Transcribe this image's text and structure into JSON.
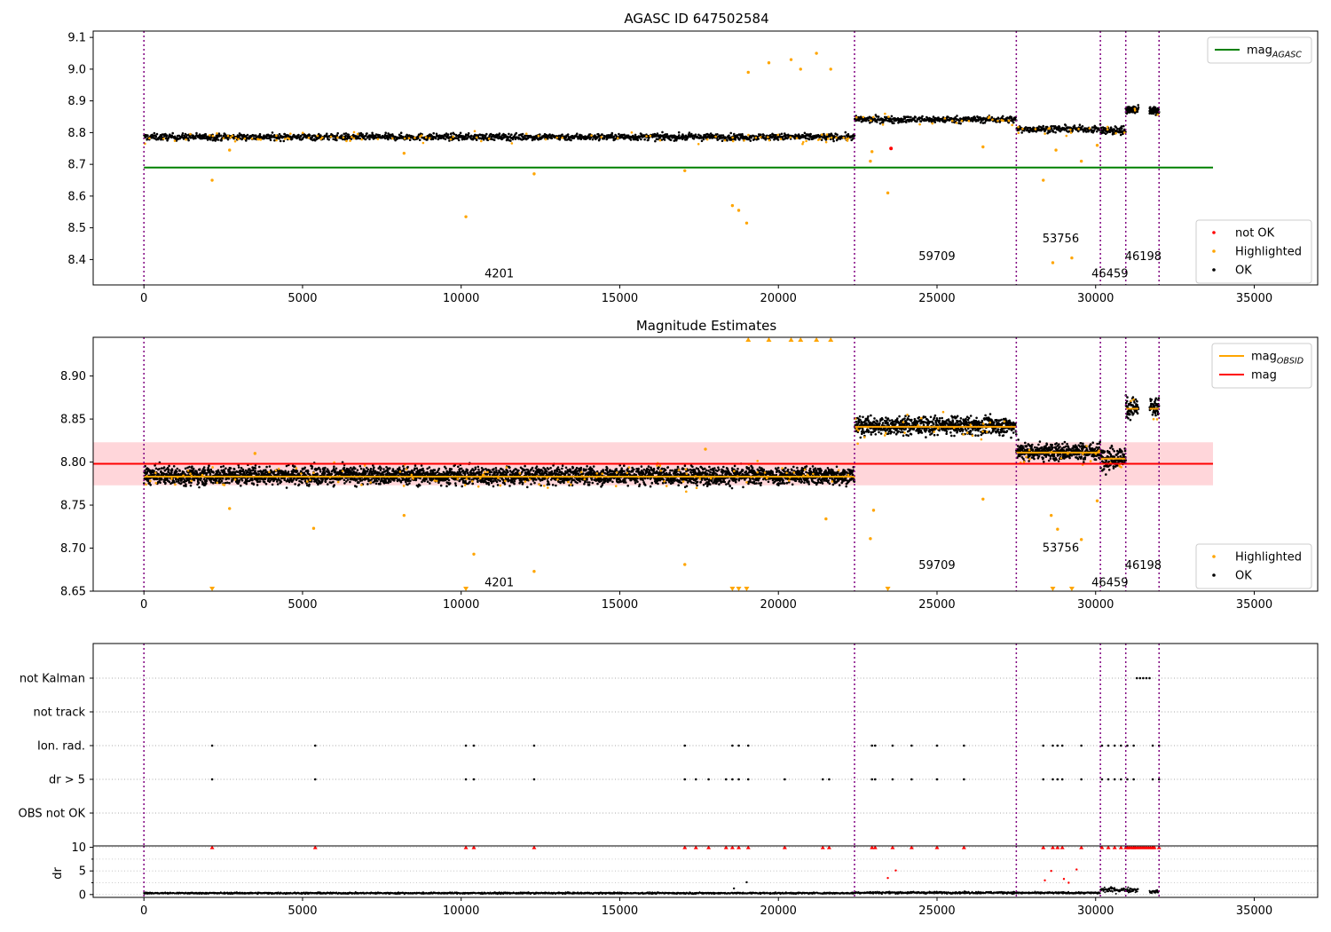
{
  "chart_data": [
    {
      "type": "scatter",
      "title": "AGASC ID 647502584",
      "xlim": [
        -1600,
        37000
      ],
      "ylim": [
        8.32,
        9.12
      ],
      "x_ticks": [
        0,
        5000,
        10000,
        15000,
        20000,
        25000,
        30000,
        35000
      ],
      "y_ticks": [
        8.4,
        8.5,
        8.6,
        8.7,
        8.8,
        8.9,
        9.0,
        9.1
      ],
      "y_tick_labels": [
        "8.4",
        "8.5",
        "8.6",
        "8.7",
        "8.8",
        "8.9",
        "9.0",
        "9.1"
      ],
      "vlines": [
        0,
        22400,
        27500,
        30150,
        30950,
        32000
      ],
      "segments": [
        {
          "x": [
            0,
            22400
          ],
          "y": 8.783,
          "spread": 0.011
        },
        {
          "x": [
            22400,
            27500
          ],
          "y": 8.838,
          "spread": 0.011
        },
        {
          "x": [
            27500,
            30150
          ],
          "y": 8.808,
          "spread": 0.011
        },
        {
          "x": [
            30150,
            30950
          ],
          "y": 8.803,
          "spread": 0.014
        },
        {
          "x": [
            30950,
            31350
          ],
          "y": 8.87,
          "spread": 0.013
        },
        {
          "x": [
            31700,
            32000
          ],
          "y": 8.865,
          "spread": 0.012
        }
      ],
      "hlines": [
        {
          "name": "mag_AGASC",
          "y": 8.69,
          "x": [
            0,
            33700
          ],
          "color": "#008000"
        }
      ],
      "highlighted_points": [
        [
          2150,
          8.65
        ],
        [
          10150,
          8.535
        ],
        [
          12300,
          8.67
        ],
        [
          17050,
          8.68
        ],
        [
          18550,
          8.57
        ],
        [
          18750,
          8.555
        ],
        [
          19000,
          8.515
        ],
        [
          19050,
          8.99
        ],
        [
          19700,
          9.02
        ],
        [
          20400,
          9.03
        ],
        [
          20700,
          9.0
        ],
        [
          21200,
          9.05
        ],
        [
          21650,
          9.0
        ],
        [
          22950,
          8.74
        ],
        [
          22900,
          8.71
        ],
        [
          23450,
          8.61
        ],
        [
          26450,
          8.755
        ],
        [
          28350,
          8.65
        ],
        [
          28650,
          8.39
        ],
        [
          28750,
          8.745
        ],
        [
          29250,
          8.405
        ],
        [
          29550,
          8.71
        ],
        [
          30050,
          8.76
        ],
        [
          8200,
          8.735
        ],
        [
          2700,
          8.745
        ]
      ],
      "not_ok_points": [
        [
          23550,
          8.75
        ]
      ],
      "annotations": [
        {
          "text": "4201",
          "x": 11200,
          "y": 8.355
        },
        {
          "text": "59709",
          "x": 25000,
          "y": 8.41
        },
        {
          "text": "53756",
          "x": 28900,
          "y": 8.465
        },
        {
          "text": "46459",
          "x": 30450,
          "y": 8.355
        },
        {
          "text": "46198",
          "x": 31500,
          "y": 8.41
        }
      ],
      "legend_top": [
        {
          "label": "mag",
          "sub": "AGASC",
          "color": "#008000",
          "kind": "line"
        }
      ],
      "legend_bottom": [
        {
          "label": "not OK",
          "color": "#ff0000",
          "kind": "dot"
        },
        {
          "label": "Highlighted",
          "color": "#ffa500",
          "kind": "dot"
        },
        {
          "label": "OK",
          "color": "#000000",
          "kind": "dot"
        }
      ],
      "legend_placement": [
        "upper right",
        "lower right"
      ]
    },
    {
      "type": "scatter",
      "title": "Magnitude Estimates",
      "xlim": [
        -1600,
        37000
      ],
      "ylim": [
        8.65,
        8.945
      ],
      "x_ticks": [
        0,
        5000,
        10000,
        15000,
        20000,
        25000,
        30000,
        35000
      ],
      "y_ticks": [
        8.65,
        8.7,
        8.75,
        8.8,
        8.85,
        8.9
      ],
      "y_tick_labels": [
        "8.65",
        "8.70",
        "8.75",
        "8.80",
        "8.85",
        "8.90"
      ],
      "vlines": [
        0,
        22400,
        27500,
        30150,
        30950,
        32000
      ],
      "segments": [
        {
          "x": [
            0,
            22400
          ],
          "y": 8.783,
          "spread": 0.011
        },
        {
          "x": [
            22400,
            27500
          ],
          "y": 8.841,
          "spread": 0.011
        },
        {
          "x": [
            27500,
            30150
          ],
          "y": 8.811,
          "spread": 0.011
        },
        {
          "x": [
            30150,
            30950
          ],
          "y": 8.804,
          "spread": 0.014
        },
        {
          "x": [
            30950,
            31350
          ],
          "y": 8.862,
          "spread": 0.013
        },
        {
          "x": [
            31700,
            32000
          ],
          "y": 8.862,
          "spread": 0.012
        }
      ],
      "band": {
        "y": [
          8.773,
          8.823
        ],
        "x": [
          -1600,
          33700
        ],
        "color": "#ffd6da"
      },
      "mag_line": {
        "y": 8.798,
        "x": [
          -1600,
          33700
        ],
        "color": "#ff0000"
      },
      "highlighted_points": [
        [
          3500,
          8.81
        ],
        [
          10400,
          8.693
        ],
        [
          12300,
          8.673
        ],
        [
          17050,
          8.681
        ],
        [
          17700,
          8.815
        ],
        [
          22900,
          8.711
        ],
        [
          23000,
          8.744
        ],
        [
          26450,
          8.757
        ],
        [
          28600,
          8.738
        ],
        [
          28800,
          8.722
        ],
        [
          29550,
          8.71
        ],
        [
          30050,
          8.755
        ],
        [
          5350,
          8.723
        ],
        [
          8200,
          8.738
        ],
        [
          2700,
          8.746
        ],
        [
          21500,
          8.734
        ]
      ],
      "clipped_points": [
        [
          2150,
          8.65
        ],
        [
          10150,
          8.65
        ],
        [
          18550,
          8.65
        ],
        [
          18750,
          8.65
        ],
        [
          19000,
          8.65
        ],
        [
          23450,
          8.65
        ],
        [
          28650,
          8.65
        ],
        [
          29250,
          8.65
        ],
        [
          19050,
          8.945
        ],
        [
          19700,
          8.945
        ],
        [
          20400,
          8.945
        ],
        [
          20700,
          8.945
        ],
        [
          21200,
          8.945
        ],
        [
          21650,
          8.945
        ]
      ],
      "annotations": [
        {
          "text": "4201",
          "x": 11200,
          "y": 8.66
        },
        {
          "text": "59709",
          "x": 25000,
          "y": 8.68
        },
        {
          "text": "53756",
          "x": 28900,
          "y": 8.7
        },
        {
          "text": "46459",
          "x": 30450,
          "y": 8.66
        },
        {
          "text": "46198",
          "x": 31500,
          "y": 8.68
        }
      ],
      "legend_top": [
        {
          "label": "mag",
          "sub": "OBSID",
          "color": "#ffa500",
          "kind": "line"
        },
        {
          "label": "mag",
          "sub": "",
          "color": "#ff0000",
          "kind": "line"
        }
      ],
      "legend_bottom": [
        {
          "label": "Highlighted",
          "color": "#ffa500",
          "kind": "dot"
        },
        {
          "label": "OK",
          "color": "#000000",
          "kind": "dot"
        }
      ],
      "legend_placement": [
        "upper right",
        "lower right"
      ]
    },
    {
      "type": "scatter",
      "xlim": [
        -1600,
        37000
      ],
      "categories": [
        "not Kalman",
        "not track",
        "Ion. rad.",
        "dr > 5",
        "OBS not OK"
      ],
      "vlines": [
        0,
        22400,
        27500,
        30150,
        30950,
        32000
      ],
      "flags": {
        "not Kalman": [
          31300,
          31400,
          31500,
          31600,
          31700
        ],
        "not track": [],
        "Ion. rad.": [
          2150,
          5400,
          10150,
          10400,
          12300,
          17050,
          18550,
          18750,
          19050,
          22950,
          23050,
          23600,
          24200,
          25000,
          25850,
          28350,
          28650,
          28800,
          28950,
          29550,
          30200,
          30400,
          30600,
          30800,
          31000,
          31200,
          31800,
          32000
        ],
        "dr > 5": [
          2150,
          5400,
          10150,
          10400,
          12300,
          17050,
          17400,
          17800,
          18350,
          18550,
          18750,
          19050,
          20200,
          21400,
          21600,
          22950,
          23050,
          23600,
          24200,
          25000,
          25850,
          28350,
          28650,
          28800,
          28950,
          29550,
          30200,
          30400,
          30600,
          30800,
          31000,
          31200,
          31800,
          32000
        ],
        "OBS not OK": []
      }
    },
    {
      "type": "scatter",
      "ylabel": "dr",
      "xlim": [
        -1600,
        37000
      ],
      "ylim": [
        -0.6,
        10.3
      ],
      "x_ticks": [
        0,
        5000,
        10000,
        15000,
        20000,
        25000,
        30000,
        35000
      ],
      "y_ticks": [
        0,
        5,
        10
      ],
      "y_tick_labels": [
        "0",
        "5",
        "10"
      ],
      "vlines": [
        0,
        22400,
        27500,
        30150,
        30950,
        32000
      ],
      "clipped_points": [
        2150,
        5400,
        10150,
        10400,
        12300,
        17050,
        17400,
        17800,
        18350,
        18550,
        18750,
        19050,
        20200,
        21400,
        21600,
        22950,
        23050,
        23600,
        24200,
        25000,
        25850,
        28350,
        28650,
        28800,
        28950,
        29550,
        30200,
        30400,
        30600,
        30800,
        31000,
        31200,
        31800,
        32000
      ],
      "outliers": [
        [
          23450,
          3.5
        ],
        [
          23700,
          5.1
        ],
        [
          28400,
          3.0
        ],
        [
          28600,
          5.0
        ],
        [
          29000,
          3.3
        ],
        [
          29150,
          2.5
        ],
        [
          29400,
          5.3
        ],
        [
          19000,
          2.6
        ],
        [
          18600,
          1.3
        ]
      ],
      "segments": [
        {
          "x": [
            0,
            22400
          ],
          "y": 0.3
        },
        {
          "x": [
            22400,
            27500
          ],
          "y": 0.4
        },
        {
          "x": [
            27500,
            30150
          ],
          "y": 0.35
        },
        {
          "x": [
            30150,
            31350
          ],
          "y": 1.0
        },
        {
          "x": [
            31700,
            32000
          ],
          "y": 0.6
        }
      ]
    }
  ]
}
